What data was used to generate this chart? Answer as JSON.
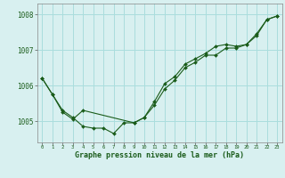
{
  "background_color": "#d8f0f0",
  "grid_color": "#aadddd",
  "line_color": "#1a5c1a",
  "marker_color": "#1a5c1a",
  "xlabel": "Graphe pression niveau de la mer (hPa)",
  "xlim": [
    -0.5,
    23.5
  ],
  "ylim": [
    1004.4,
    1008.3
  ],
  "yticks": [
    1005,
    1006,
    1007,
    1008
  ],
  "xticks": [
    0,
    1,
    2,
    3,
    4,
    5,
    6,
    7,
    8,
    9,
    10,
    11,
    12,
    13,
    14,
    15,
    16,
    17,
    18,
    19,
    20,
    21,
    22,
    23
  ],
  "series1_x": [
    0,
    1,
    2,
    3,
    4,
    5,
    6,
    7,
    8,
    9,
    10,
    11,
    12,
    13,
    14,
    15,
    16,
    17,
    18,
    19,
    20,
    21,
    22,
    23
  ],
  "series1_y": [
    1006.2,
    1005.75,
    1005.3,
    1005.1,
    1004.85,
    1004.8,
    1004.8,
    1004.65,
    1004.95,
    1004.95,
    1005.1,
    1005.45,
    1005.9,
    1006.15,
    1006.5,
    1006.65,
    1006.85,
    1006.85,
    1007.05,
    1007.05,
    1007.15,
    1007.4,
    1007.85,
    1007.95
  ],
  "series2_x": [
    0,
    1,
    2,
    3,
    4,
    9,
    10,
    11,
    12,
    13,
    14,
    15,
    16,
    17,
    18,
    19,
    20,
    21,
    22,
    23
  ],
  "series2_y": [
    1006.2,
    1005.75,
    1005.25,
    1005.05,
    1005.3,
    1004.95,
    1005.1,
    1005.55,
    1006.05,
    1006.25,
    1006.6,
    1006.75,
    1006.9,
    1007.1,
    1007.15,
    1007.1,
    1007.15,
    1007.45,
    1007.85,
    1007.95
  ]
}
